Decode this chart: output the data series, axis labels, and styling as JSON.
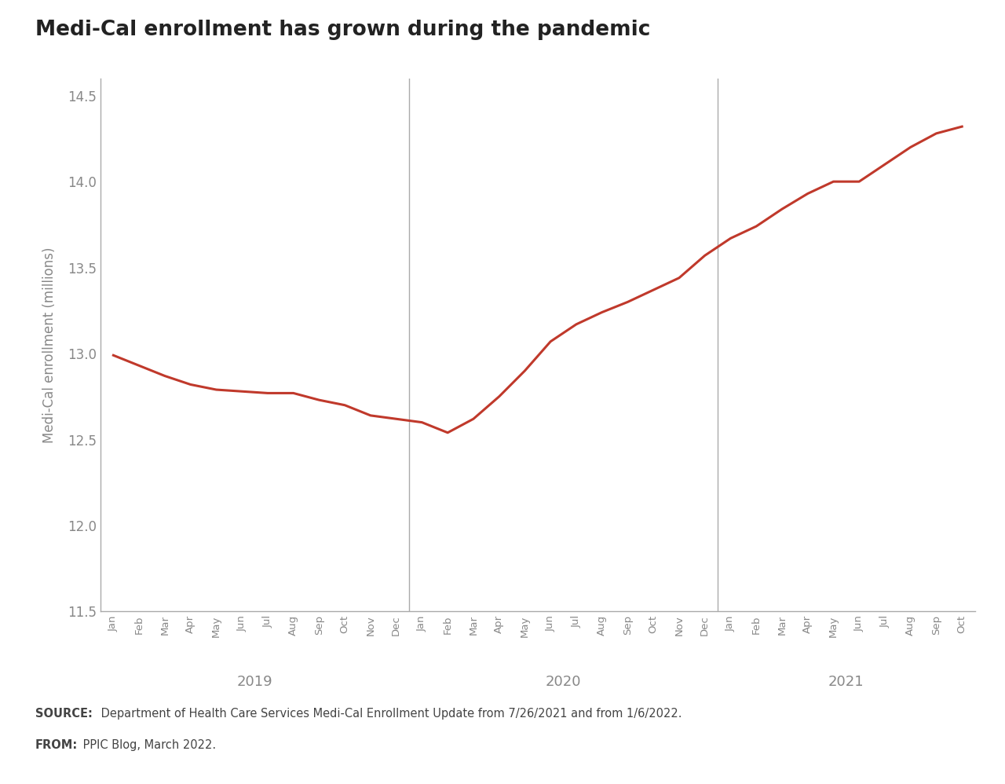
{
  "title": "Medi-Cal enrollment has grown during the pandemic",
  "ylabel": "Medi-Cal enrollment (millions)",
  "ylim": [
    11.5,
    14.6
  ],
  "yticks": [
    11.5,
    12.0,
    12.5,
    13.0,
    13.5,
    14.0,
    14.5
  ],
  "line_color": "#C0392B",
  "background_color": "#FFFFFF",
  "footer_bg_color": "#EBEBEB",
  "source_bold": "SOURCE:",
  "source_text": " Department of Health Care Services Medi-Cal Enrollment Update from 7/26/2021 and from 1/6/2022.",
  "from_bold": "FROM:",
  "from_text": " PPIC Blog, March 2022.",
  "months_2019": [
    "Jan",
    "Feb",
    "Mar",
    "Apr",
    "May",
    "Jun",
    "Jul",
    "Aug",
    "Sep",
    "Oct",
    "Nov",
    "Dec"
  ],
  "months_2020": [
    "Jan",
    "Feb",
    "Mar",
    "Apr",
    "May",
    "Jun",
    "Jul",
    "Aug",
    "Sep",
    "Oct",
    "Nov",
    "Dec"
  ],
  "months_2021": [
    "Jan",
    "Feb",
    "Mar",
    "Apr",
    "May",
    "Jun",
    "Jul",
    "Aug",
    "Sep",
    "Oct"
  ],
  "values_2019": [
    12.99,
    12.93,
    12.87,
    12.82,
    12.79,
    12.78,
    12.77,
    12.77,
    12.73,
    12.7,
    12.64,
    12.62
  ],
  "values_2020": [
    12.6,
    12.54,
    12.62,
    12.75,
    12.9,
    13.07,
    13.17,
    13.24,
    13.3,
    13.37,
    13.44,
    13.57
  ],
  "values_2021": [
    13.67,
    13.74,
    13.84,
    13.93,
    14.0,
    14.0,
    14.1,
    14.2,
    14.28,
    14.32
  ],
  "spine_color": "#AAAAAA",
  "tick_color": "#888888",
  "year_label_color": "#888888",
  "ylabel_color": "#888888",
  "title_color": "#222222"
}
